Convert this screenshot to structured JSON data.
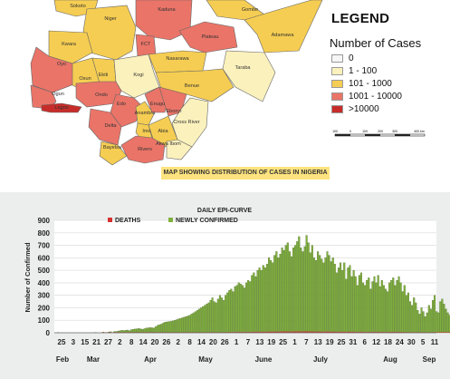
{
  "map": {
    "legend_title": "LEGEND",
    "legend_subtitle": "Number of Cases",
    "legend_items": [
      {
        "label": "0",
        "color": "#f5f5f5"
      },
      {
        "label": "1 - 100",
        "color": "#fbf1bd"
      },
      {
        "label": "101 - 1000",
        "color": "#f5cd52"
      },
      {
        "label": "1001 - 10000",
        "color": "#ea7468"
      },
      {
        "label": ">10000",
        "color": "#c62d2a"
      }
    ],
    "scale_labels": [
      "100",
      "0",
      "100",
      "200",
      "300",
      "400 km"
    ],
    "caption": "MAP SHOWING DISTRIBUTION OF CASES IN NIGERIA",
    "states": [
      {
        "name": "Sokoto",
        "color": "#f5cd52"
      },
      {
        "name": "Niger",
        "color": "#f5cd52"
      },
      {
        "name": "Kaduna",
        "color": "#ea7468"
      },
      {
        "name": "Gombe",
        "color": "#f5cd52"
      },
      {
        "name": "Adamawa",
        "color": "#f5cd52"
      },
      {
        "name": "Kwara",
        "color": "#f5cd52"
      },
      {
        "name": "FCT",
        "color": "#ea7468"
      },
      {
        "name": "Plateau",
        "color": "#ea7468"
      },
      {
        "name": "Nasarawa",
        "color": "#f5cd52"
      },
      {
        "name": "Taraba",
        "color": "#fbf1bd"
      },
      {
        "name": "Oyo",
        "color": "#ea7468"
      },
      {
        "name": "Osun",
        "color": "#f5cd52"
      },
      {
        "name": "Ekiti",
        "color": "#f5cd52"
      },
      {
        "name": "Kogi",
        "color": "#fbf1bd"
      },
      {
        "name": "Benue",
        "color": "#f5cd52"
      },
      {
        "name": "Ogun",
        "color": "#ea7468"
      },
      {
        "name": "Ondo",
        "color": "#ea7468"
      },
      {
        "name": "Lagos",
        "color": "#c62d2a"
      },
      {
        "name": "Edo",
        "color": "#ea7468"
      },
      {
        "name": "Anambra",
        "color": "#f5cd52"
      },
      {
        "name": "Enugu",
        "color": "#ea7468"
      },
      {
        "name": "Ebonyi",
        "color": "#ea7468"
      },
      {
        "name": "Cross River",
        "color": "#fbf1bd"
      },
      {
        "name": "Delta",
        "color": "#ea7468"
      },
      {
        "name": "Imo",
        "color": "#f5cd52"
      },
      {
        "name": "Abia",
        "color": "#f5cd52"
      },
      {
        "name": "Akwa Ibom",
        "color": "#fbf1bd"
      },
      {
        "name": "Bayelsa",
        "color": "#f5cd52"
      },
      {
        "name": "Rivers",
        "color": "#ea7468"
      }
    ]
  },
  "chart_data": {
    "type": "bar",
    "title": "DAILY EPI-CURVE",
    "ylabel": "Number of Confirmed",
    "xlabel": "",
    "ylim": [
      0,
      900
    ],
    "yticks": [
      0,
      100,
      200,
      300,
      400,
      500,
      600,
      700,
      800,
      900
    ],
    "grid": true,
    "legend_position": "top",
    "series": [
      {
        "name": "DEATHS",
        "color": "#d63030"
      },
      {
        "name": "NEWLY CONFIRMED",
        "color": "#7fb03c"
      }
    ],
    "x_tick_labels": [
      "25",
      "3",
      "15",
      "21",
      "27",
      "2",
      "8",
      "14",
      "20",
      "26",
      "2",
      "8",
      "14",
      "20",
      "26",
      "1",
      "7",
      "13",
      "19",
      "25",
      "1",
      "7",
      "13",
      "19",
      "25",
      "31",
      "6",
      "12",
      "18",
      "24",
      "30",
      "5",
      "11"
    ],
    "month_labels": [
      "Feb",
      "Mar",
      "Apr",
      "May",
      "June",
      "July",
      "Aug",
      "Sep"
    ],
    "x_start": "2020-02-25",
    "x_end": "2020-09-11",
    "newly_confirmed": [
      1,
      0,
      0,
      0,
      0,
      0,
      0,
      0,
      0,
      0,
      0,
      0,
      0,
      0,
      0,
      0,
      0,
      0,
      0,
      0,
      1,
      0,
      0,
      0,
      5,
      3,
      2,
      5,
      8,
      3,
      11,
      10,
      14,
      16,
      20,
      18,
      20,
      22,
      17,
      25,
      28,
      30,
      32,
      35,
      30,
      28,
      33,
      38,
      40,
      42,
      40,
      39,
      50,
      60,
      65,
      70,
      80,
      85,
      87,
      90,
      92,
      95,
      100,
      105,
      110,
      115,
      120,
      125,
      130,
      135,
      140,
      150,
      160,
      170,
      180,
      190,
      200,
      210,
      220,
      230,
      240,
      260,
      280,
      250,
      240,
      270,
      300,
      280,
      260,
      300,
      320,
      340,
      350,
      330,
      370,
      380,
      400,
      390,
      380,
      360,
      400,
      420,
      410,
      460,
      480,
      450,
      500,
      520,
      500,
      540,
      520,
      550,
      600,
      580,
      560,
      620,
      650,
      600,
      630,
      680,
      660,
      700,
      720,
      650,
      610,
      680,
      700,
      730,
      770,
      680,
      650,
      690,
      780,
      720,
      640,
      700,
      600,
      580,
      650,
      620,
      590,
      560,
      600,
      650,
      620,
      570,
      600,
      550,
      480,
      520,
      560,
      500,
      560,
      430,
      520,
      540,
      450,
      500,
      450,
      380,
      460,
      480,
      400,
      380,
      420,
      440,
      350,
      410,
      450,
      400,
      460,
      370,
      420,
      380,
      350,
      330,
      400,
      420,
      440,
      380,
      420,
      450,
      400,
      330,
      380,
      300,
      320,
      250,
      220,
      280,
      240,
      180,
      150,
      200,
      170,
      130,
      160,
      220,
      190,
      260,
      300,
      170,
      160,
      250,
      270,
      230,
      190,
      160,
      140,
      120
    ]
  }
}
